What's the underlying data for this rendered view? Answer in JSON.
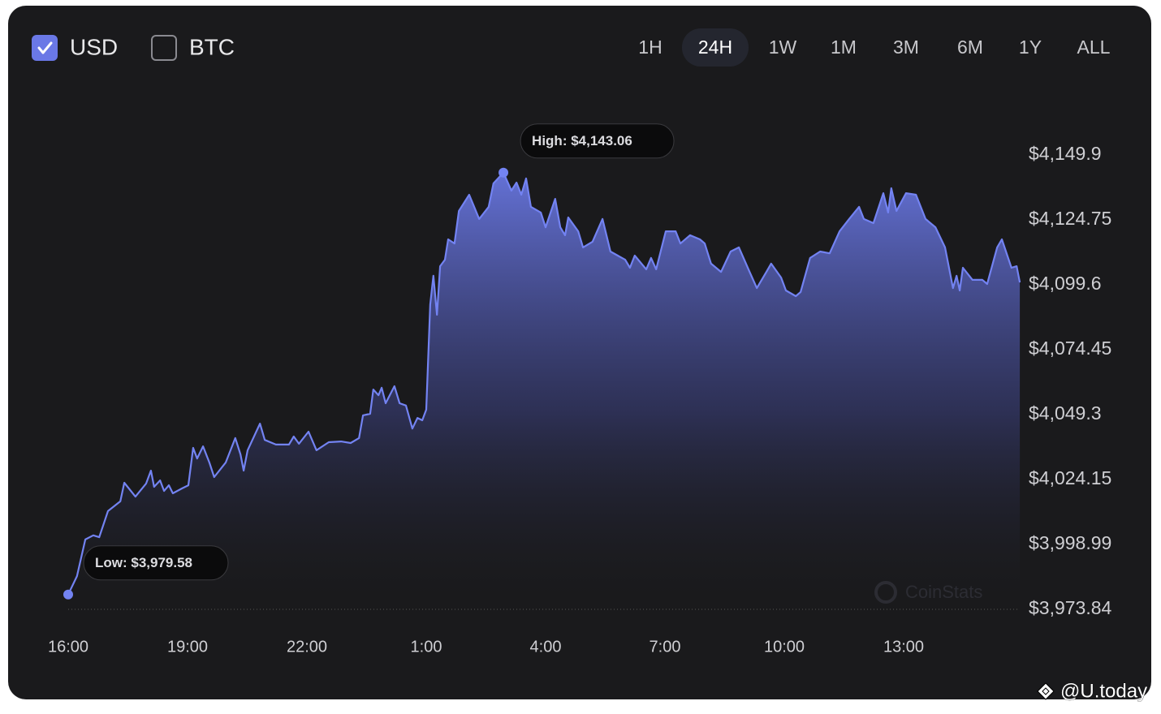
{
  "chart_data": {
    "type": "area",
    "currencies": [
      {
        "label": "USD",
        "checked": true
      },
      {
        "label": "BTC",
        "checked": false
      }
    ],
    "ranges": [
      "1H",
      "24H",
      "1W",
      "1M",
      "3M",
      "6M",
      "1Y",
      "ALL"
    ],
    "active_range": 1,
    "annotations": {
      "high": "High: $4,143.06",
      "low": "Low: $3,979.58"
    },
    "watermark": "CoinStats",
    "credit": "@U.today",
    "x": [
      0,
      0.22,
      0.43,
      0.63,
      0.78,
      1.0,
      1.31,
      1.41,
      1.69,
      1.96,
      2.08,
      2.16,
      2.31,
      2.41,
      2.53,
      2.63,
      2.86,
      3.02,
      3.14,
      3.24,
      3.39,
      3.55,
      3.67,
      3.96,
      4.2,
      4.33,
      4.41,
      4.51,
      4.82,
      4.94,
      5.22,
      5.55,
      5.67,
      5.8,
      6.04,
      6.24,
      6.55,
      6.86,
      7.1,
      7.31,
      7.41,
      7.59,
      7.67,
      7.8,
      7.88,
      7.98,
      8.2,
      8.33,
      8.49,
      8.65,
      8.78,
      8.9,
      9.0,
      9.1,
      9.18,
      9.27,
      9.35,
      9.47,
      9.55,
      9.71,
      9.82,
      10.08,
      10.33,
      10.57,
      10.69,
      10.94,
      11.14,
      11.27,
      11.39,
      11.51,
      11.63,
      11.88,
      12.0,
      12.24,
      12.37,
      12.49,
      12.57,
      12.82,
      12.94,
      13.18,
      13.43,
      13.63,
      14.0,
      14.12,
      14.24,
      14.53,
      14.65,
      14.78,
      15.02,
      15.27,
      15.39,
      15.63,
      15.88,
      16.0,
      16.16,
      16.41,
      16.65,
      16.86,
      17.1,
      17.31,
      17.55,
      17.67,
      17.92,
      18.04,
      18.29,
      18.41,
      18.65,
      18.9,
      19.14,
      19.39,
      19.63,
      19.88,
      20.0,
      20.24,
      20.49,
      20.61,
      20.69,
      20.82,
      21.06,
      21.31,
      21.55,
      21.8,
      22.04,
      22.24,
      22.33,
      22.41,
      22.49,
      22.73,
      22.98,
      23.1,
      23.35,
      23.47,
      23.71,
      23.84,
      23.92
    ],
    "series": [
      {
        "color": "#7383f2",
        "values": [
          3979.58,
          3986.7,
          4000.9,
          4002.5,
          4001.8,
          4011.9,
          4015.7,
          4022.9,
          4017.5,
          4022.6,
          4027.6,
          4021.3,
          4023.8,
          4019.7,
          4021.9,
          4018.8,
          4020.7,
          4021.9,
          4036.4,
          4032.3,
          4037.0,
          4030.7,
          4025.1,
          4030.7,
          4040.2,
          4033.9,
          4027.6,
          4035.5,
          4045.8,
          4039.5,
          4037.7,
          4037.7,
          4040.8,
          4038.0,
          4042.7,
          4035.5,
          4038.6,
          4038.9,
          4038.3,
          4040.2,
          4049.0,
          4049.6,
          4059.0,
          4056.8,
          4059.7,
          4053.7,
          4060.3,
          4053.7,
          4052.8,
          4043.9,
          4048.0,
          4047.1,
          4051.2,
          4092.0,
          4103.1,
          4088.0,
          4106.8,
          4109.3,
          4117.2,
          4115.6,
          4128.2,
          4134.5,
          4125.1,
          4129.8,
          4138.9,
          4143.06,
          4136.1,
          4139.2,
          4134.5,
          4140.8,
          4129.8,
          4127.6,
          4121.9,
          4132.9,
          4121.9,
          4118.8,
          4125.7,
          4120.3,
          4114.1,
          4116.3,
          4125.1,
          4112.5,
          4109.3,
          4106.2,
          4110.9,
          4105.6,
          4110.0,
          4105.6,
          4120.3,
          4120.3,
          4115.6,
          4118.8,
          4117.2,
          4115.6,
          4107.8,
          4104.6,
          4112.5,
          4114.1,
          4105.6,
          4098.3,
          4104.6,
          4107.8,
          4102.4,
          4097.4,
          4095.2,
          4096.8,
          4110.0,
          4112.5,
          4111.8,
          4120.3,
          4125.1,
          4129.8,
          4125.1,
          4123.5,
          4135.1,
          4127.6,
          4137.0,
          4128.2,
          4135.1,
          4134.5,
          4125.1,
          4121.9,
          4114.1,
          4098.3,
          4103.1,
          4097.4,
          4106.2,
          4101.5,
          4101.5,
          4099.9,
          4114.1,
          4117.2,
          4106.2,
          4106.8,
          4100.5
        ]
      }
    ],
    "xlim": [
      0,
      24
    ],
    "xticks": [
      {
        "value": 0,
        "label": "16:00"
      },
      {
        "value": 3,
        "label": "19:00"
      },
      {
        "value": 6,
        "label": "22:00"
      },
      {
        "value": 9,
        "label": "1:00"
      },
      {
        "value": 12,
        "label": "4:00"
      },
      {
        "value": 15,
        "label": "7:00"
      },
      {
        "value": 18,
        "label": "10:00"
      },
      {
        "value": 21,
        "label": "13:00"
      }
    ],
    "ylim": [
      3973.84,
      4149.9
    ],
    "yticks": [
      {
        "value": 4149.9,
        "label": "$4,149.9"
      },
      {
        "value": 4124.75,
        "label": "$4,124.75"
      },
      {
        "value": 4099.6,
        "label": "$4,099.6"
      },
      {
        "value": 4074.45,
        "label": "$4,074.45"
      },
      {
        "value": 4049.3,
        "label": "$4,049.3"
      },
      {
        "value": 4024.15,
        "label": "$4,024.15"
      },
      {
        "value": 3998.99,
        "label": "$3,998.99"
      },
      {
        "value": 3973.84,
        "label": "$3,973.84"
      }
    ],
    "grid": false
  }
}
